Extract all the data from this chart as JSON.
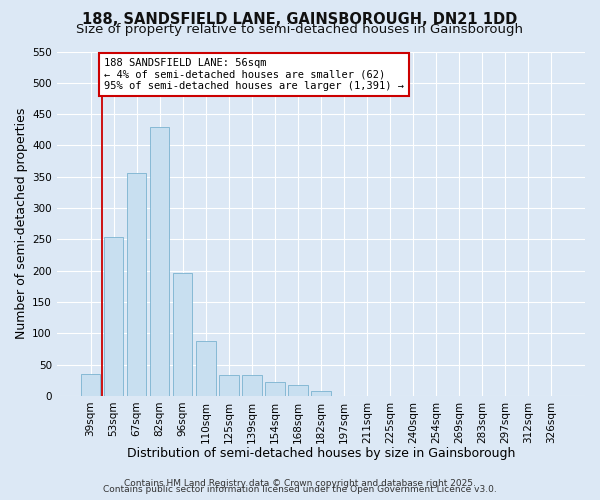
{
  "title": "188, SANDSFIELD LANE, GAINSBOROUGH, DN21 1DD",
  "subtitle": "Size of property relative to semi-detached houses in Gainsborough",
  "xlabel": "Distribution of semi-detached houses by size in Gainsborough",
  "ylabel": "Number of semi-detached properties",
  "bar_labels": [
    "39sqm",
    "53sqm",
    "67sqm",
    "82sqm",
    "96sqm",
    "110sqm",
    "125sqm",
    "139sqm",
    "154sqm",
    "168sqm",
    "182sqm",
    "197sqm",
    "211sqm",
    "225sqm",
    "240sqm",
    "254sqm",
    "269sqm",
    "283sqm",
    "297sqm",
    "312sqm",
    "326sqm"
  ],
  "bar_heights": [
    35,
    253,
    356,
    430,
    197,
    88,
    34,
    34,
    22,
    17,
    8,
    0,
    0,
    0,
    0,
    0,
    0,
    0,
    0,
    0,
    0
  ],
  "bar_color": "#c8dff0",
  "bar_edge_color": "#7ab3d0",
  "vline_color": "#cc0000",
  "ylim": [
    0,
    550
  ],
  "yticks": [
    0,
    50,
    100,
    150,
    200,
    250,
    300,
    350,
    400,
    450,
    500,
    550
  ],
  "annotation_title": "188 SANDSFIELD LANE: 56sqm",
  "annotation_line1": "← 4% of semi-detached houses are smaller (62)",
  "annotation_line2": "95% of semi-detached houses are larger (1,391) →",
  "annotation_box_facecolor": "#ffffff",
  "annotation_box_edgecolor": "#cc0000",
  "footer_line1": "Contains HM Land Registry data © Crown copyright and database right 2025.",
  "footer_line2": "Contains public sector information licensed under the Open Government Licence v3.0.",
  "background_color": "#dce8f5",
  "grid_color": "#ffffff",
  "title_fontsize": 10.5,
  "subtitle_fontsize": 9.5,
  "axis_label_fontsize": 9,
  "tick_fontsize": 7.5,
  "footer_fontsize": 6.5,
  "ann_fontsize": 7.5
}
